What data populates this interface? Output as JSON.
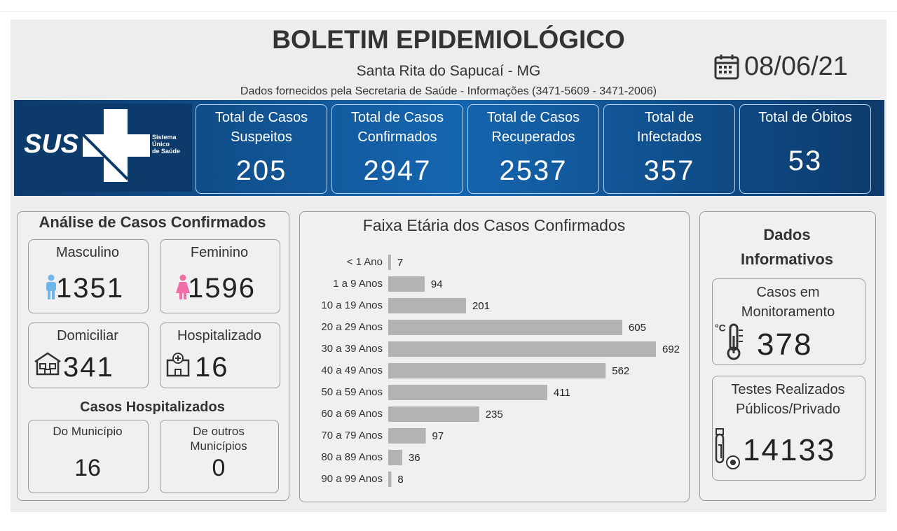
{
  "header": {
    "title": "BOLETIM EPIDEMIOLÓGICO",
    "subtitle": "Santa Rita do Sapucaí - MG",
    "source": "Dados fornecidos pela Secretaria de Saúde - Informações (3471-5609 - 3471-2006)",
    "date": "08/06/21"
  },
  "logo": {
    "name": "SUS",
    "lines": [
      "Sistema",
      "Único",
      "de Saúde"
    ]
  },
  "totals": [
    {
      "label": [
        "Total de Casos",
        "Suspeitos"
      ],
      "value": 205
    },
    {
      "label": [
        "Total de Casos",
        "Confirmados"
      ],
      "value": 2947
    },
    {
      "label": [
        "Total de Casos",
        "Recuperados"
      ],
      "value": 2537
    },
    {
      "label": [
        "Total de",
        "Infectados"
      ],
      "value": 357
    },
    {
      "label": [
        "Total de Óbitos"
      ],
      "value": 53
    }
  ],
  "analysis": {
    "title": "Análise de Casos Confirmados",
    "cards": [
      {
        "label": [
          "Masculino"
        ],
        "value": 1351
      },
      {
        "label": [
          "Feminino"
        ],
        "value": 1596
      },
      {
        "label": [
          "Domiciliar"
        ],
        "value": 341
      },
      {
        "label": [
          "Hospitalizado"
        ],
        "value": 16
      }
    ],
    "hospital_title": "Casos Hospitalizados",
    "hospital_cards": [
      {
        "label": [
          "Do Município"
        ],
        "value": 16
      },
      {
        "label": [
          "De outros",
          "Municípios"
        ],
        "value": 0
      }
    ]
  },
  "age_chart": {
    "type": "bar",
    "orientation": "horizontal",
    "title": "Faixa Etária dos Casos Confirmados",
    "color": "#b3b3b3",
    "categories": [
      "< 1 Ano",
      "1 a 9 Anos",
      "10 a 19 Anos",
      "20 a 29 Anos",
      "30 a 39 Anos",
      "40 a 49 Anos",
      "50 a 59 Anos",
      "60 a 69 Anos",
      "70 a 79 Anos",
      "80 a 89 Anos",
      "90 a 99 Anos"
    ],
    "values": [
      7,
      94,
      201,
      605,
      692,
      562,
      411,
      235,
      97,
      36,
      8
    ]
  },
  "info": {
    "title": [
      "Dados",
      "Informativos"
    ],
    "cards": [
      {
        "label": [
          "Casos em",
          "Monitoramento"
        ],
        "value": 378
      },
      {
        "label": [
          "Testes Realizados",
          "Públicos/Privado"
        ],
        "value": 14133
      }
    ]
  }
}
